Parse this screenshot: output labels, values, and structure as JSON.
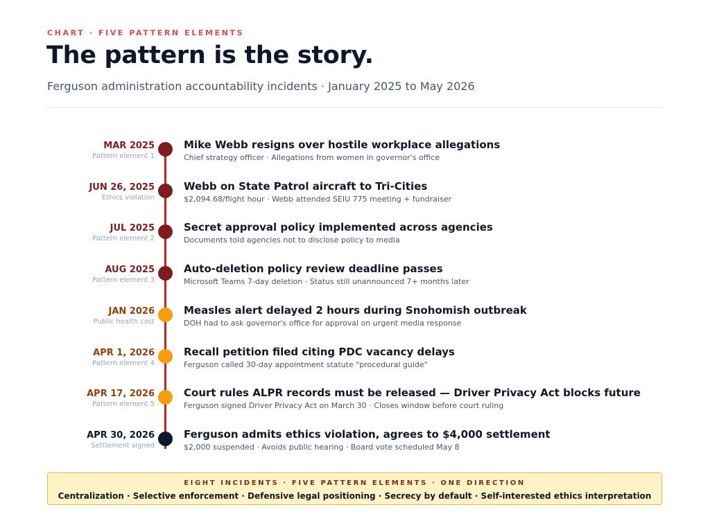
{
  "header": {
    "kicker": "CHART · FIVE PATTERN ELEMENTS",
    "title": "The pattern is the story.",
    "subtitle": "Ferguson administration accountability incidents · January 2025 to May 2026"
  },
  "colors": {
    "pattern_red": "#7f1d1d",
    "public_amber": "#f59e0b",
    "amber_date": "#92400e",
    "settlement_navy": "#0f172a",
    "timeline_line": "#c81e1e"
  },
  "chart_data": {
    "type": "timeline",
    "events": [
      {
        "date": "MAR 2025",
        "tag": "Pattern element 1",
        "title": "Mike Webb resigns over hostile workplace allegations",
        "detail": "Chief strategy officer · Allegations from women in governor's office",
        "category": "pattern"
      },
      {
        "date": "JUN 26, 2025",
        "tag": "Ethics violation",
        "title": "Webb on State Patrol aircraft to Tri-Cities",
        "detail": "$2,094.68/flight hour · Webb attended SEIU 775 meeting + fundraiser",
        "category": "pattern"
      },
      {
        "date": "JUL 2025",
        "tag": "Pattern element 2",
        "title": "Secret approval policy implemented across agencies",
        "detail": "Documents told agencies not to disclose policy to media",
        "category": "pattern"
      },
      {
        "date": "AUG 2025",
        "tag": "Pattern element 3",
        "title": "Auto-deletion policy review deadline passes",
        "detail": "Microsoft Teams 7-day deletion · Status still unannounced 7+ months later",
        "category": "pattern"
      },
      {
        "date": "JAN 2026",
        "tag": "Public health cost",
        "title": "Measles alert delayed 2 hours during Snohomish outbreak",
        "detail": "DOH had to ask governor's office for approval on urgent media response",
        "category": "public"
      },
      {
        "date": "APR 1, 2026",
        "tag": "Pattern element 4",
        "title": "Recall petition filed citing PDC vacancy delays",
        "detail": "Ferguson called 30-day appointment statute \"procedural guide\"",
        "category": "public"
      },
      {
        "date": "APR 17, 2026",
        "tag": "Pattern element 5",
        "title": "Court rules ALPR records must be released — Driver Privacy Act blocks future",
        "detail": "Ferguson signed Driver Privacy Act on March 30 · Closes window before court ruling",
        "category": "public"
      },
      {
        "date": "APR 30, 2026",
        "tag": "Settlement signed",
        "title": "Ferguson admits ethics violation, agrees to $4,000 settlement",
        "detail": "$2,000 suspended · Avoids public hearing · Board vote scheduled May 8",
        "category": "settlement"
      }
    ]
  },
  "footer": {
    "kicker": "EIGHT INCIDENTS · FIVE PATTERN ELEMENTS · ONE DIRECTION",
    "text": "Centralization · Selective enforcement · Defensive legal positioning · Secrecy by default · Self-interested ethics interpretation"
  }
}
